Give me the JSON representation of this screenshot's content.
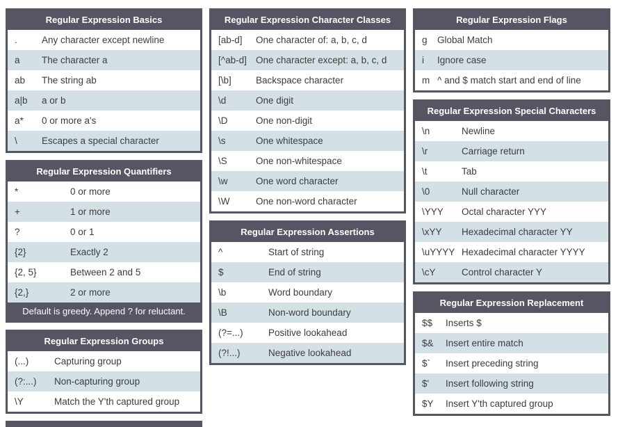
{
  "colors": {
    "header_bg": "#555564",
    "row_alt_bg": "#d3e1e7",
    "row_bg": "#ffffff",
    "body_text": "#3c3c3c",
    "header_text": "#ffffff"
  },
  "tables": {
    "basics": {
      "title": "Regular Expression Basics",
      "rows": [
        {
          "symbol": ".",
          "description": "Any character except newline"
        },
        {
          "symbol": "a",
          "description": "The character a"
        },
        {
          "symbol": "ab",
          "description": "The string ab"
        },
        {
          "symbol": "a|b",
          "description": "a or b"
        },
        {
          "symbol": "a*",
          "description": "0 or more a's"
        },
        {
          "symbol": "\\",
          "description": "Escapes a special character"
        }
      ]
    },
    "quantifiers": {
      "title": "Regular Expression Quantifiers",
      "rows": [
        {
          "symbol": "*",
          "description": "0 or more"
        },
        {
          "symbol": "+",
          "description": "1 or more"
        },
        {
          "symbol": "?",
          "description": "0 or 1"
        },
        {
          "symbol": "{2}",
          "description": "Exactly 2"
        },
        {
          "symbol": "{2, 5}",
          "description": "Between 2 and 5"
        },
        {
          "symbol": "{2,}",
          "description": "2 or more"
        }
      ],
      "footer": "Default is greedy. Append ? for reluctant."
    },
    "groups": {
      "title": "Regular Expression Groups",
      "rows": [
        {
          "symbol": "(...)",
          "description": "Capturing group"
        },
        {
          "symbol": "(?:...)",
          "description": "Non-capturing group"
        },
        {
          "symbol": "\\Y",
          "description": "Match the Y'th captured group"
        }
      ]
    },
    "character_classes": {
      "title": "Regular Expression Character Classes",
      "rows": [
        {
          "symbol": "[ab-d]",
          "description": "One character of: a, b, c, d"
        },
        {
          "symbol": "[^ab-d]",
          "description": "One character except: a, b, c, d"
        },
        {
          "symbol": "[\\b]",
          "description": "Backspace character"
        },
        {
          "symbol": "\\d",
          "description": "One digit"
        },
        {
          "symbol": "\\D",
          "description": "One non-digit"
        },
        {
          "symbol": "\\s",
          "description": "One whitespace"
        },
        {
          "symbol": "\\S",
          "description": "One non-whitespace"
        },
        {
          "symbol": "\\w",
          "description": "One word character"
        },
        {
          "symbol": "\\W",
          "description": "One non-word character"
        }
      ]
    },
    "assertions": {
      "title": "Regular Expression Assertions",
      "rows": [
        {
          "symbol": "^",
          "description": "Start of string"
        },
        {
          "symbol": "$",
          "description": "End of string"
        },
        {
          "symbol": "\\b",
          "description": "Word boundary"
        },
        {
          "symbol": "\\B",
          "description": "Non-word boundary"
        },
        {
          "symbol": "(?=...)",
          "description": "Positive lookahead"
        },
        {
          "symbol": "(?!...)",
          "description": "Negative lookahead"
        }
      ]
    },
    "flags": {
      "title": "Regular Expression Flags",
      "rows": [
        {
          "symbol": "g",
          "description": "Global Match"
        },
        {
          "symbol": "i",
          "description": "Ignore case"
        },
        {
          "symbol": "m",
          "description": "^ and $ match start and end of line"
        }
      ]
    },
    "special_characters": {
      "title": "Regular Expression Special Characters",
      "rows": [
        {
          "symbol": "\\n",
          "description": "Newline"
        },
        {
          "symbol": "\\r",
          "description": "Carriage return"
        },
        {
          "symbol": "\\t",
          "description": "Tab"
        },
        {
          "symbol": "\\0",
          "description": "Null character"
        },
        {
          "symbol": "\\YYY",
          "description": "Octal character YYY"
        },
        {
          "symbol": "\\xYY",
          "description": "Hexadecimal character YY"
        },
        {
          "symbol": "\\uYYYY",
          "description": "Hexadecimal character YYYY"
        },
        {
          "symbol": "\\cY",
          "description": "Control character Y"
        }
      ]
    },
    "replacement": {
      "title": "Regular Expression Replacement",
      "rows": [
        {
          "symbol": "$$",
          "description": "Inserts $"
        },
        {
          "symbol": "$&",
          "description": "Insert entire match"
        },
        {
          "symbol": "$`",
          "description": "Insert preceding string"
        },
        {
          "symbol": "$'",
          "description": "Insert following string"
        },
        {
          "symbol": "$Y",
          "description": "Insert Y'th captured group"
        }
      ]
    }
  }
}
